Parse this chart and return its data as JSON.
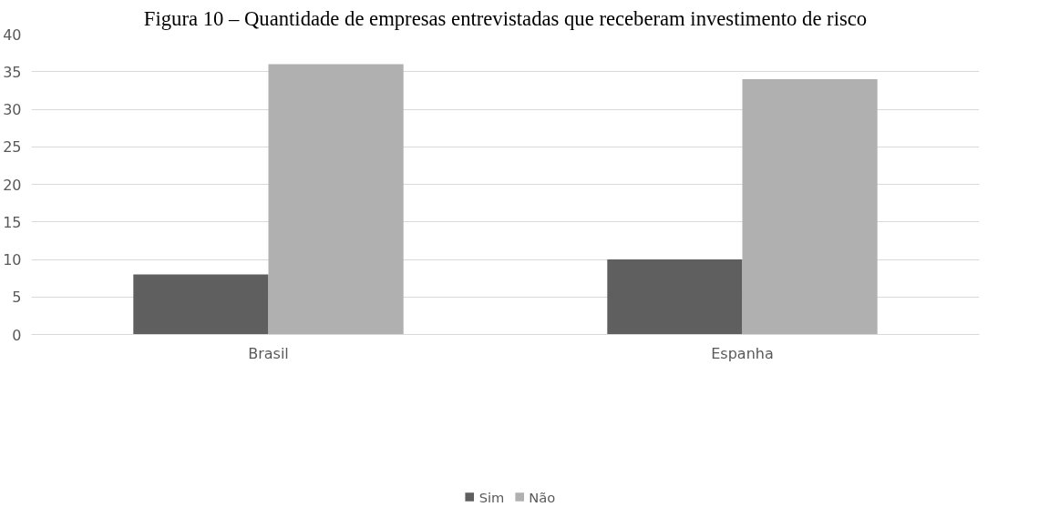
{
  "chart_data": {
    "type": "bar",
    "title": "Figura 10 – Quantidade de empresas entrevistadas que receberam investimento de risco",
    "categories": [
      "Brasil",
      "Espanha"
    ],
    "series": [
      {
        "name": "Sim",
        "color": "#5f5f5f",
        "values": [
          8,
          10
        ]
      },
      {
        "name": "Não",
        "color": "#b0b0b0",
        "values": [
          36,
          34
        ]
      }
    ],
    "ylim": [
      0,
      40
    ],
    "yticks": [
      0,
      5,
      10,
      15,
      20,
      25,
      30,
      35,
      40
    ],
    "grid": "y",
    "legend": "bottom"
  }
}
